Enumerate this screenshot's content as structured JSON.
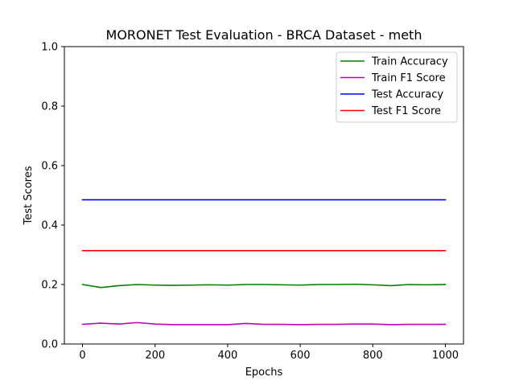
{
  "chart_data": {
    "type": "line",
    "title": "MORONET Test Evaluation - BRCA Dataset - meth",
    "xlabel": "Epochs",
    "ylabel": "Test Scores",
    "xlim": [
      -50,
      1050
    ],
    "ylim": [
      0.0,
      1.0
    ],
    "xticks": [
      0,
      200,
      400,
      600,
      800,
      1000
    ],
    "xtick_labels": [
      "0",
      "200",
      "400",
      "600",
      "800",
      "1000"
    ],
    "yticks": [
      0.0,
      0.2,
      0.4,
      0.6,
      0.8,
      1.0
    ],
    "ytick_labels": [
      "0.0",
      "0.2",
      "0.4",
      "0.6",
      "0.8",
      "1.0"
    ],
    "grid": false,
    "legend_position": "top-right",
    "x": [
      0,
      50,
      100,
      150,
      200,
      250,
      300,
      350,
      400,
      450,
      500,
      550,
      600,
      650,
      700,
      750,
      800,
      850,
      900,
      950,
      1000
    ],
    "series": [
      {
        "name": "Train Accuracy",
        "color": "#008000",
        "values": [
          0.2,
          0.19,
          0.196,
          0.2,
          0.198,
          0.197,
          0.198,
          0.199,
          0.198,
          0.2,
          0.2,
          0.199,
          0.198,
          0.2,
          0.2,
          0.201,
          0.199,
          0.196,
          0.2,
          0.199,
          0.2
        ]
      },
      {
        "name": "Train F1 Score",
        "color": "#bf00bf",
        "values": [
          0.066,
          0.07,
          0.067,
          0.072,
          0.067,
          0.065,
          0.065,
          0.065,
          0.065,
          0.069,
          0.066,
          0.066,
          0.065,
          0.066,
          0.066,
          0.067,
          0.067,
          0.065,
          0.066,
          0.066,
          0.066
        ]
      },
      {
        "name": "Test Accuracy",
        "color": "#0000ff",
        "values": [
          0.485,
          0.485,
          0.485,
          0.485,
          0.485,
          0.485,
          0.485,
          0.485,
          0.485,
          0.485,
          0.485,
          0.485,
          0.485,
          0.485,
          0.485,
          0.485,
          0.485,
          0.485,
          0.485,
          0.485,
          0.485
        ]
      },
      {
        "name": "Test F1 Score",
        "color": "#ff0000",
        "values": [
          0.314,
          0.314,
          0.314,
          0.314,
          0.314,
          0.314,
          0.314,
          0.314,
          0.314,
          0.314,
          0.314,
          0.314,
          0.314,
          0.314,
          0.314,
          0.314,
          0.314,
          0.314,
          0.314,
          0.314,
          0.314
        ]
      }
    ]
  }
}
